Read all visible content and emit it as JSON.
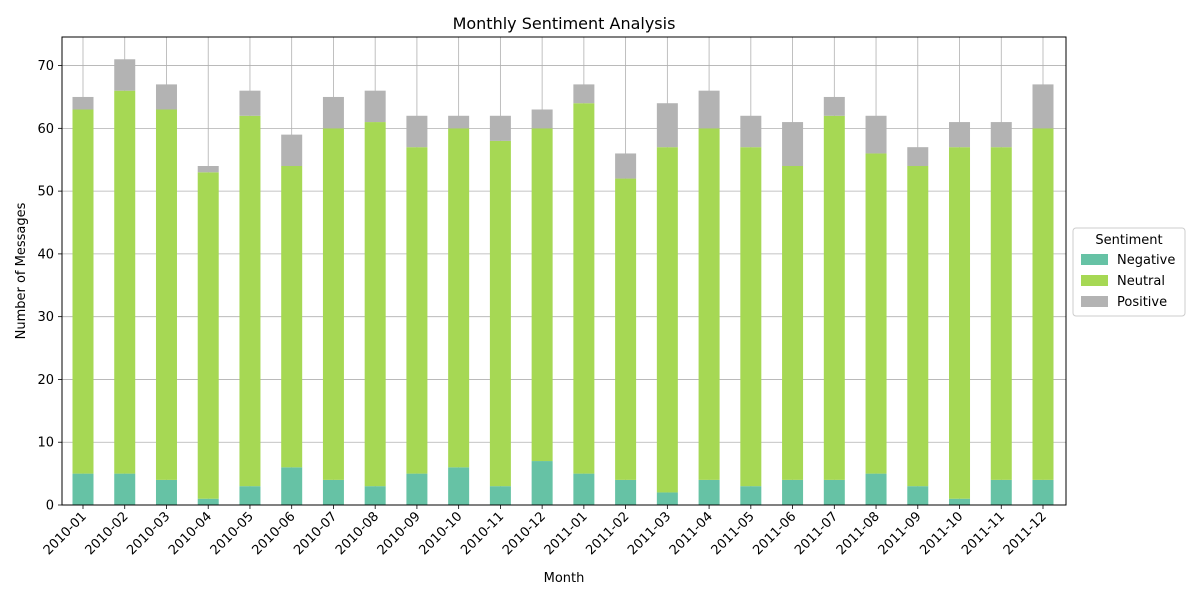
{
  "chart_data": {
    "type": "bar",
    "stacked": true,
    "title": "Monthly Sentiment Analysis",
    "xlabel": "Month",
    "ylabel": "Number of Messages",
    "ylim": [
      0,
      74.55
    ],
    "yticks": [
      0,
      10,
      20,
      30,
      40,
      50,
      60,
      70
    ],
    "grid": true,
    "legend": {
      "title": "Sentiment",
      "placement": "center-right-outside"
    },
    "categories": [
      "2010-01",
      "2010-02",
      "2010-03",
      "2010-04",
      "2010-05",
      "2010-06",
      "2010-07",
      "2010-08",
      "2010-09",
      "2010-10",
      "2010-11",
      "2010-12",
      "2011-01",
      "2011-02",
      "2011-03",
      "2011-04",
      "2011-05",
      "2011-06",
      "2011-07",
      "2011-08",
      "2011-09",
      "2011-10",
      "2011-11",
      "2011-12"
    ],
    "series": [
      {
        "name": "Negative",
        "color": "#66c2a5",
        "values": [
          5,
          5,
          4,
          1,
          3,
          6,
          4,
          3,
          5,
          6,
          3,
          7,
          5,
          4,
          2,
          4,
          3,
          4,
          4,
          5,
          3,
          1,
          4,
          4
        ]
      },
      {
        "name": "Neutral",
        "color": "#a6d854",
        "values": [
          58,
          61,
          59,
          52,
          59,
          48,
          56,
          58,
          52,
          54,
          55,
          53,
          59,
          48,
          55,
          56,
          54,
          50,
          58,
          51,
          51,
          56,
          53,
          56
        ]
      },
      {
        "name": "Positive",
        "color": "#b3b3b3",
        "values": [
          2,
          5,
          4,
          1,
          4,
          5,
          5,
          5,
          5,
          2,
          4,
          3,
          3,
          4,
          7,
          6,
          5,
          7,
          3,
          6,
          3,
          4,
          4,
          7
        ]
      }
    ]
  }
}
